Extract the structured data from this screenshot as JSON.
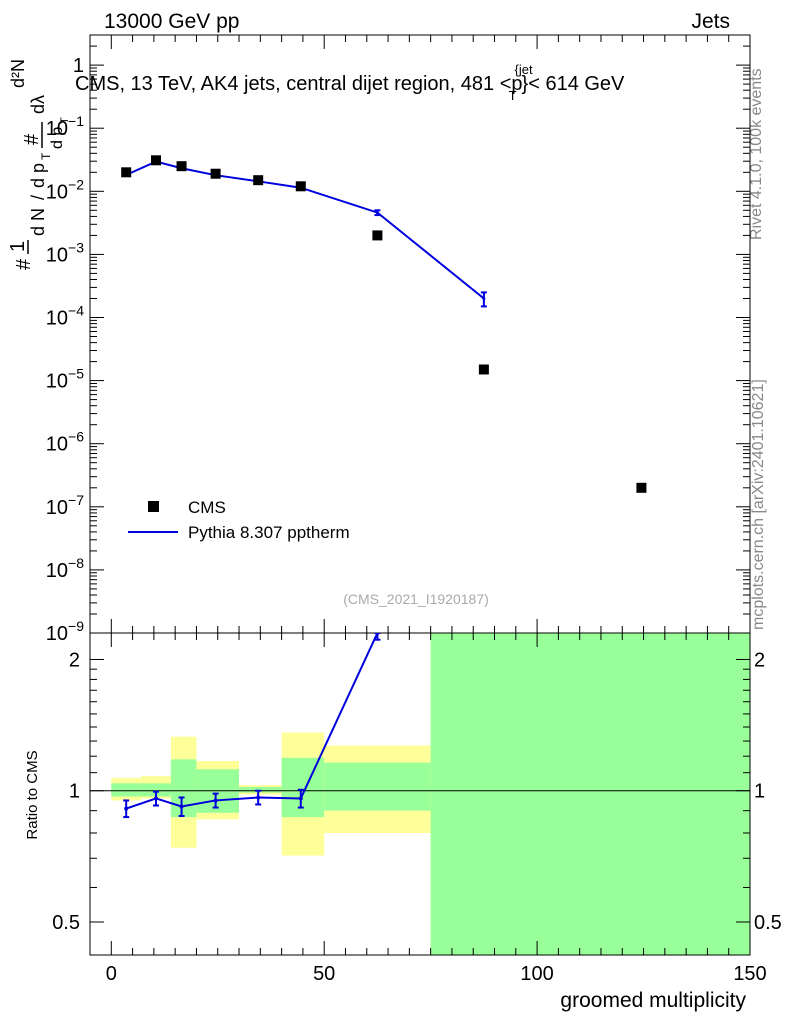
{
  "header": {
    "energy_label": "13000 GeV pp",
    "process_label": "Jets"
  },
  "side_labels": {
    "rivet": "Rivet 4.1.0,  100k events",
    "mcplots": "mcplots.cern.ch [arXiv:2401.10621]"
  },
  "analysis_id": "(CMS_2021_I1920187)",
  "chart_data": [
    {
      "type": "scatter",
      "panel": "main",
      "title": "CMS, 13 TeV, AK4 jets, central dijet region, 481 < p_T^{jet} < 614 GeV",
      "xlabel": "groomed multiplicity",
      "ylabel": "(1/N) dN/d p_T / (# / (d p_T dλ))",
      "yscale": "log",
      "xlim": [
        -5,
        150
      ],
      "ylim": [
        1e-09,
        3
      ],
      "y_ticks": [
        {
          "value": 1e-09,
          "label": "10^-9"
        },
        {
          "value": 1e-08,
          "label": "10^-8"
        },
        {
          "value": 1e-07,
          "label": "10^-7"
        },
        {
          "value": 1e-06,
          "label": "10^-6"
        },
        {
          "value": 1e-05,
          "label": "10^-5"
        },
        {
          "value": 0.0001,
          "label": "10^-4"
        },
        {
          "value": 0.001,
          "label": "10^-3"
        },
        {
          "value": 0.01,
          "label": "10^-2"
        },
        {
          "value": 0.1,
          "label": "10^-1"
        },
        {
          "value": 1,
          "label": "1"
        }
      ],
      "legend": {
        "position": "bottom-left",
        "entries": [
          "CMS",
          "Pythia 8.307 pptherm"
        ]
      },
      "series": [
        {
          "name": "CMS",
          "style": "black-squares",
          "x": [
            3.5,
            10.5,
            16.5,
            24.5,
            34.5,
            44.5,
            62.5,
            87.5,
            124.5
          ],
          "y": [
            0.02,
            0.031,
            0.025,
            0.019,
            0.015,
            0.012,
            0.002,
            1.5e-05,
            2e-07
          ]
        },
        {
          "name": "Pythia 8.307 pptherm",
          "style": "blue-line",
          "color": "#0000dd",
          "x": [
            3.5,
            10.5,
            16.5,
            24.5,
            34.5,
            44.5,
            62.5,
            87.5
          ],
          "y": [
            0.0182,
            0.0296,
            0.0232,
            0.018,
            0.0144,
            0.0114,
            0.0046,
            0.0002
          ],
          "yerr": [
            0,
            0,
            0,
            0,
            0,
            0,
            0.0004,
            5e-05
          ]
        }
      ]
    },
    {
      "type": "line",
      "panel": "ratio",
      "xlabel": "groomed multiplicity",
      "ylabel": "Ratio to CMS",
      "yscale": "log",
      "xlim": [
        -5,
        150
      ],
      "ylim": [
        0.42,
        2.3
      ],
      "x_ticks": [
        {
          "value": 0,
          "label": "0"
        },
        {
          "value": 50,
          "label": "50"
        },
        {
          "value": 100,
          "label": "100"
        },
        {
          "value": 150,
          "label": "150"
        }
      ],
      "y_ticks": [
        {
          "value": 0.5,
          "label": "0.5"
        },
        {
          "value": 1,
          "label": "1"
        },
        {
          "value": 2,
          "label": "2"
        }
      ],
      "uncertainty_bands": {
        "edges": [
          0,
          7,
          14,
          20,
          30,
          40,
          50,
          75,
          150
        ],
        "stat_low": [
          0.97,
          0.97,
          0.87,
          0.89,
          0.99,
          0.87,
          0.9,
          0.42
        ],
        "stat_high": [
          1.04,
          1.04,
          1.18,
          1.12,
          1.02,
          1.19,
          1.16,
          2.3
        ],
        "total_low": [
          0.95,
          0.96,
          0.74,
          0.86,
          0.98,
          0.71,
          0.8,
          0.42
        ],
        "total_high": [
          1.07,
          1.08,
          1.33,
          1.17,
          1.03,
          1.36,
          1.27,
          2.3
        ],
        "stat_color": "#99ff99",
        "total_color": "#ffff99"
      },
      "series": [
        {
          "name": "Pythia 8.307 pptherm / CMS",
          "color": "#0000dd",
          "x": [
            3.5,
            10.5,
            16.5,
            24.5,
            34.5,
            44.5,
            62.5
          ],
          "y": [
            0.91,
            0.96,
            0.92,
            0.95,
            0.965,
            0.96,
            2.3
          ],
          "yerr": [
            0.04,
            0.035,
            0.045,
            0.035,
            0.035,
            0.045,
            0.08
          ]
        }
      ]
    }
  ]
}
